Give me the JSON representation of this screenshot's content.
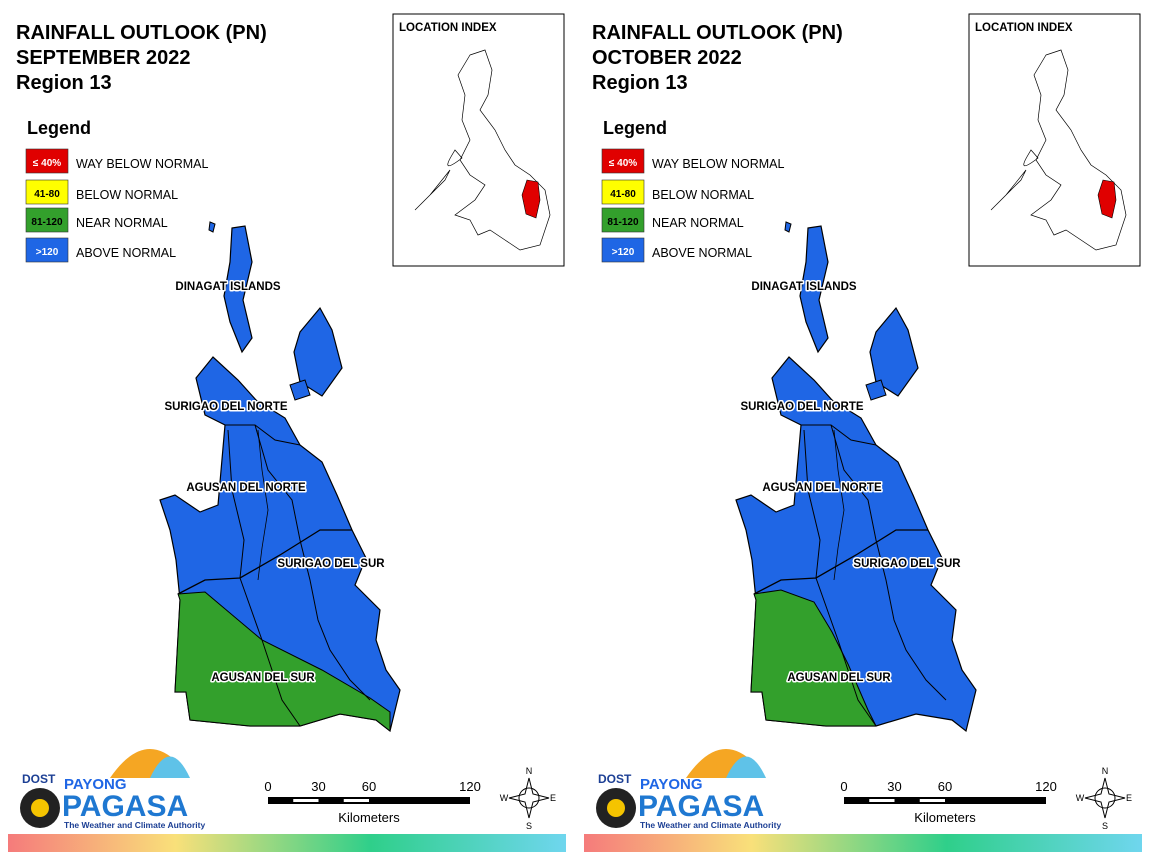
{
  "panels": [
    {
      "title": [
        "RAINFALL OUTLOOK (PN)",
        "SEPTEMBER 2022",
        "Region 13"
      ],
      "legend": {
        "title": "Legend",
        "items": [
          {
            "range": "≤ 40%",
            "label": "WAY BELOW NORMAL",
            "color": "#e00000"
          },
          {
            "range": "41-80",
            "label": "BELOW NORMAL",
            "color": "#ffff00"
          },
          {
            "range": "81-120",
            "label": "NEAR NORMAL",
            "color": "#33a02c"
          },
          {
            "range": ">120",
            "label": "ABOVE NORMAL",
            "color": "#1f66e5"
          }
        ]
      },
      "location_index": "LOCATION INDEX",
      "provinces": [
        "DINAGAT ISLANDS",
        "SURIGAO DEL NORTE",
        "AGUSAN DEL NORTE",
        "SURIGAO DEL SUR",
        "AGUSAN DEL SUR"
      ],
      "scale": {
        "ticks": [
          0,
          30,
          60,
          120
        ],
        "unit": "Kilometers"
      },
      "logo": {
        "agency": "DOST",
        "brand_top": "PAYONG",
        "brand": "PAGASA",
        "tagline": "The Weather and Climate Authority"
      },
      "compass": [
        "N",
        "E",
        "S",
        "W"
      ]
    },
    {
      "title": [
        "RAINFALL OUTLOOK (PN)",
        "OCTOBER 2022",
        "Region 13"
      ],
      "legend": {
        "title": "Legend",
        "items": [
          {
            "range": "≤ 40%",
            "label": "WAY BELOW NORMAL",
            "color": "#e00000"
          },
          {
            "range": "41-80",
            "label": "BELOW NORMAL",
            "color": "#ffff00"
          },
          {
            "range": "81-120",
            "label": "NEAR NORMAL",
            "color": "#33a02c"
          },
          {
            "range": ">120",
            "label": "ABOVE NORMAL",
            "color": "#1f66e5"
          }
        ]
      },
      "location_index": "LOCATION INDEX",
      "provinces": [
        "DINAGAT ISLANDS",
        "SURIGAO DEL NORTE",
        "AGUSAN DEL NORTE",
        "SURIGAO DEL SUR",
        "AGUSAN DEL SUR"
      ],
      "scale": {
        "ticks": [
          0,
          30,
          60,
          120
        ],
        "unit": "Kilometers"
      },
      "logo": {
        "agency": "DOST",
        "brand_top": "PAYONG",
        "brand": "PAGASA",
        "tagline": "The Weather and Climate Authority"
      },
      "compass": [
        "N",
        "E",
        "S",
        "W"
      ]
    }
  ]
}
